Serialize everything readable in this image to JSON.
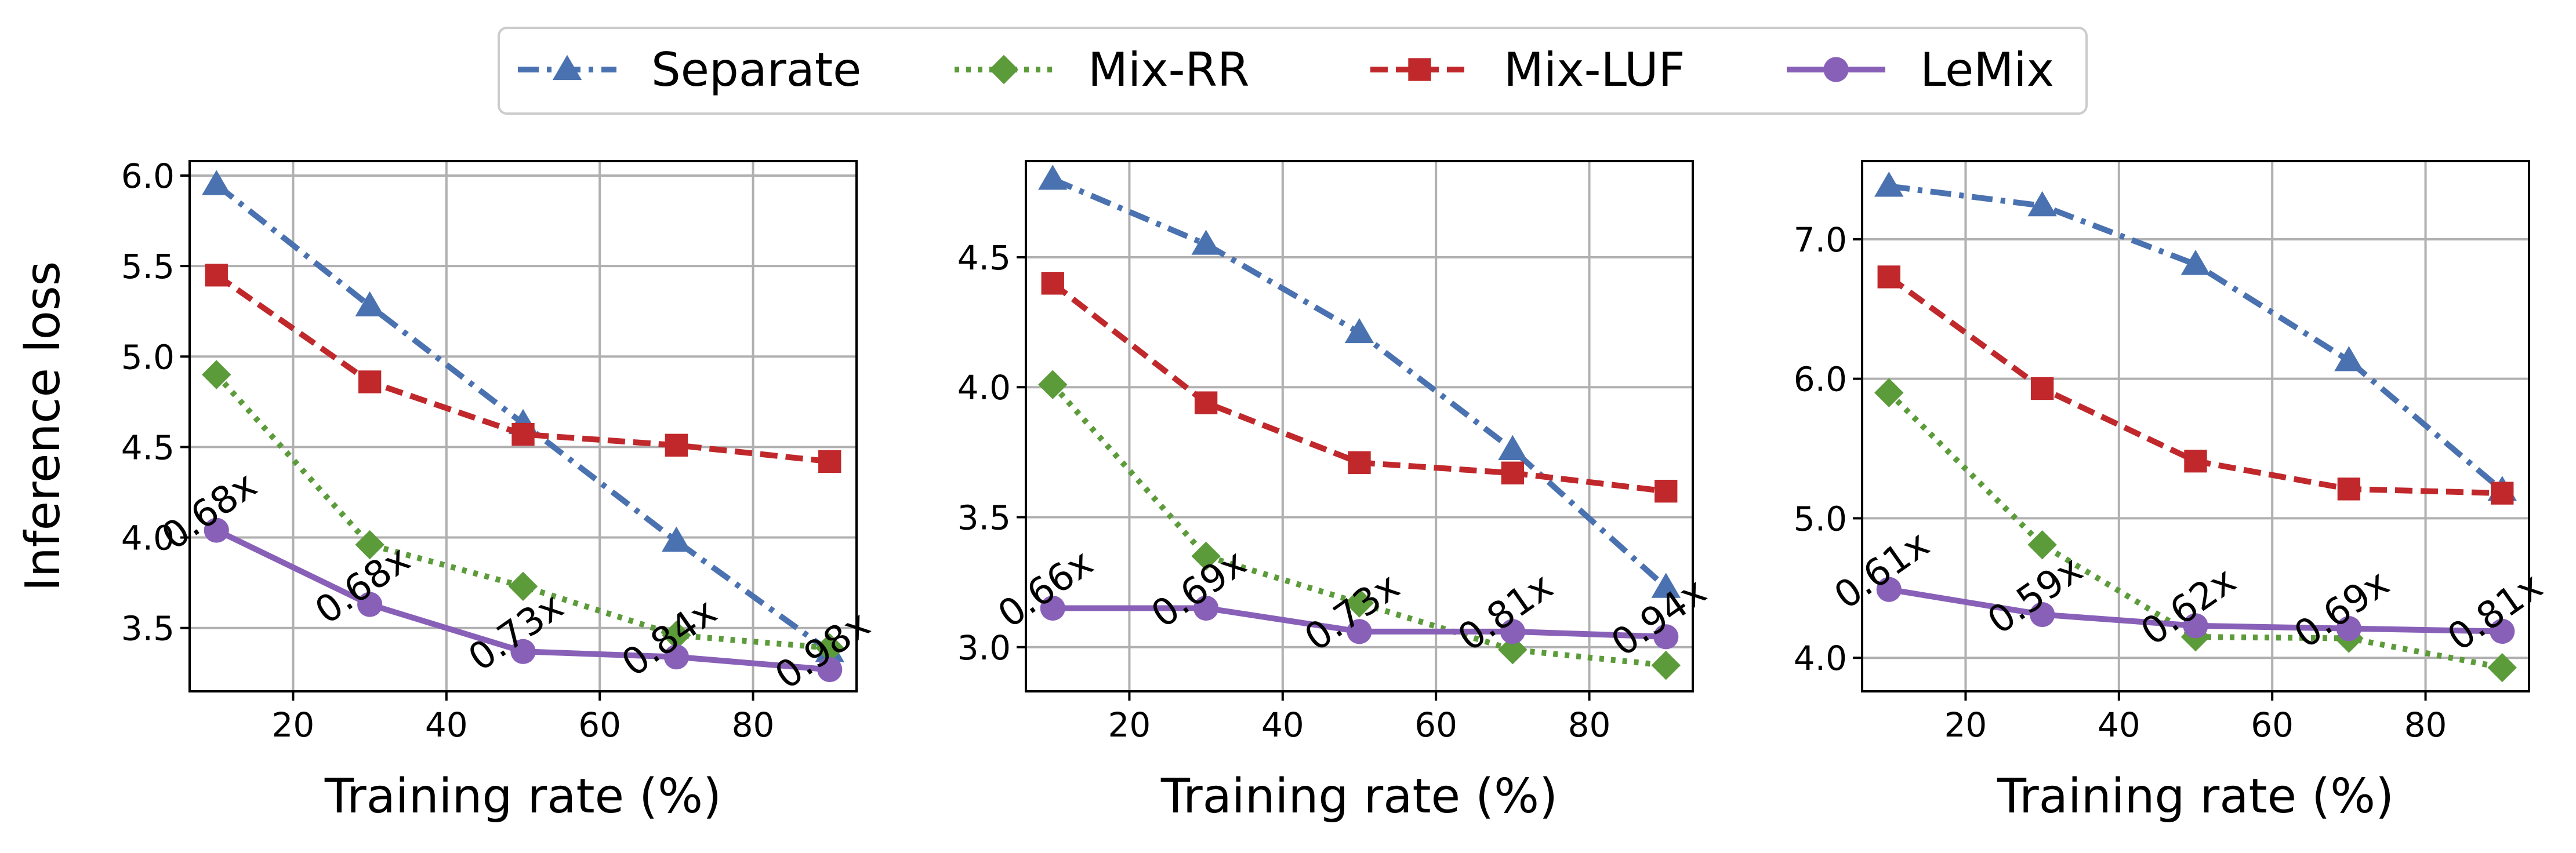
{
  "colors": {
    "separate": "#4a72b0",
    "mixrr": "#5c9b3a",
    "mixluf": "#c0282b",
    "lemix": "#8860b8",
    "grid": "#b0b0b0"
  },
  "legend": {
    "placement": "top-center",
    "entries": [
      {
        "key": "separate",
        "label": "Separate",
        "marker": "triangle",
        "dash": "dash-dot"
      },
      {
        "key": "mixrr",
        "label": "Mix-RR",
        "marker": "diamond",
        "dash": "dotted"
      },
      {
        "key": "mixluf",
        "label": "Mix-LUF",
        "marker": "square",
        "dash": "dashed"
      },
      {
        "key": "lemix",
        "label": "LeMix",
        "marker": "circle",
        "dash": "solid"
      }
    ]
  },
  "chart_data": [
    {
      "type": "line",
      "title": "",
      "xlabel": "Training rate (%)",
      "ylabel": "Inference loss",
      "grid": true,
      "xlim": [
        6.5,
        93.5
      ],
      "ylim": [
        3.15,
        6.08
      ],
      "xticks": [
        20,
        40,
        60,
        80
      ],
      "xtick_labels": [
        "20",
        "40",
        "60",
        "80"
      ],
      "yticks": [
        3.5,
        4.0,
        4.5,
        5.0,
        5.5,
        6.0
      ],
      "ytick_labels": [
        "3.5",
        "4.0",
        "4.5",
        "5.0",
        "5.5",
        "6.0"
      ],
      "x": [
        10,
        30,
        50,
        70,
        90
      ],
      "series": [
        {
          "name": "Separate",
          "key": "separate",
          "values": [
            5.95,
            5.28,
            4.63,
            3.98,
            3.37
          ]
        },
        {
          "name": "Mix-RR",
          "key": "mixrr",
          "values": [
            4.9,
            3.96,
            3.73,
            3.46,
            3.39
          ]
        },
        {
          "name": "Mix-LUF",
          "key": "mixluf",
          "values": [
            5.45,
            4.86,
            4.57,
            4.51,
            4.42
          ]
        },
        {
          "name": "LeMix",
          "key": "lemix",
          "values": [
            4.04,
            3.63,
            3.37,
            3.34,
            3.27
          ]
        }
      ],
      "annotations": [
        "0.68x",
        "0.68x",
        "0.73x",
        "0.84x",
        "0.98x"
      ]
    },
    {
      "type": "line",
      "title": "",
      "xlabel": "Training rate (%)",
      "ylabel": "",
      "grid": true,
      "xlim": [
        6.5,
        93.5
      ],
      "ylim": [
        2.83,
        4.87
      ],
      "xticks": [
        20,
        40,
        60,
        80
      ],
      "xtick_labels": [
        "20",
        "40",
        "60",
        "80"
      ],
      "yticks": [
        3.0,
        3.5,
        4.0,
        4.5
      ],
      "ytick_labels": [
        "3.0",
        "3.5",
        "4.0",
        "4.5"
      ],
      "x": [
        10,
        30,
        50,
        70,
        90
      ],
      "series": [
        {
          "name": "Separate",
          "key": "separate",
          "values": [
            4.8,
            4.55,
            4.21,
            3.76,
            3.23
          ]
        },
        {
          "name": "Mix-RR",
          "key": "mixrr",
          "values": [
            4.01,
            3.35,
            3.17,
            2.99,
            2.93
          ]
        },
        {
          "name": "Mix-LUF",
          "key": "mixluf",
          "values": [
            4.4,
            3.94,
            3.71,
            3.67,
            3.6
          ]
        },
        {
          "name": "LeMix",
          "key": "lemix",
          "values": [
            3.15,
            3.15,
            3.06,
            3.06,
            3.04
          ]
        }
      ],
      "annotations": [
        "0.66x",
        "0.69x",
        "0.73x",
        "0.81x",
        "0.94x"
      ]
    },
    {
      "type": "line",
      "title": "",
      "xlabel": "Training rate (%)",
      "ylabel": "",
      "grid": true,
      "xlim": [
        6.5,
        93.5
      ],
      "ylim": [
        3.76,
        7.56
      ],
      "xticks": [
        20,
        40,
        60,
        80
      ],
      "xtick_labels": [
        "20",
        "40",
        "60",
        "80"
      ],
      "yticks": [
        4.0,
        5.0,
        6.0,
        7.0
      ],
      "ytick_labels": [
        "4.0",
        "5.0",
        "6.0",
        "7.0"
      ],
      "x": [
        10,
        30,
        50,
        70,
        90
      ],
      "series": [
        {
          "name": "Separate",
          "key": "separate",
          "values": [
            7.38,
            7.24,
            6.82,
            6.13,
            5.2
          ]
        },
        {
          "name": "Mix-RR",
          "key": "mixrr",
          "values": [
            5.9,
            4.81,
            4.15,
            4.14,
            3.93
          ]
        },
        {
          "name": "Mix-LUF",
          "key": "mixluf",
          "values": [
            6.73,
            5.93,
            5.41,
            5.21,
            5.18
          ]
        },
        {
          "name": "LeMix",
          "key": "lemix",
          "values": [
            4.49,
            4.31,
            4.23,
            4.21,
            4.19
          ]
        }
      ],
      "annotations": [
        "0.61x",
        "0.59x",
        "0.62x",
        "0.69x",
        "0.81x"
      ]
    }
  ]
}
